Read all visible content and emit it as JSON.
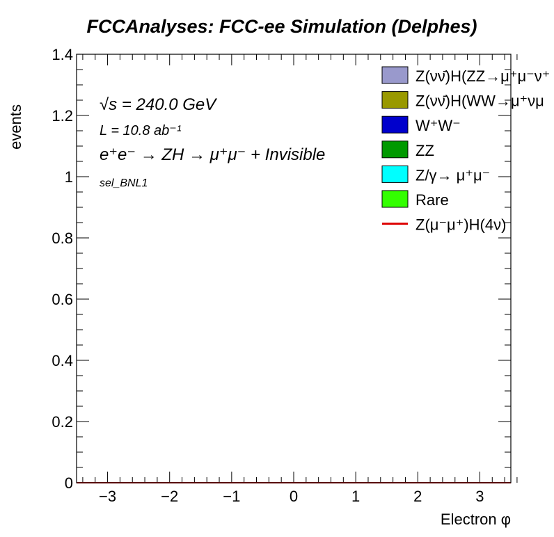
{
  "chart_data": {
    "type": "bar",
    "title": "FCCAnalyses: FCC-ee Simulation (Delphes)",
    "xlabel": "Electron φ",
    "ylabel": "events",
    "xlim": [
      -3.5,
      3.5
    ],
    "ylim": [
      0,
      1.4
    ],
    "x_ticks": [
      "−3",
      "−2",
      "−1",
      "0",
      "1",
      "2",
      "3"
    ],
    "y_ticks": [
      "0",
      "0.2",
      "0.4",
      "0.6",
      "0.8",
      "1",
      "1.2",
      "1.4"
    ],
    "grid": false,
    "legend_position": "top-right",
    "annotations": {
      "sqrt_s": "√s = 240.0 GeV",
      "lumi": "L = 10.8 ab⁻¹",
      "process": "e⁺e⁻ → ZH → μ⁺μ⁻ + Invisible",
      "selection": "sel_BNL1"
    },
    "series": [
      {
        "name": "Z(νν̄)H(ZZ→μ⁺μ⁻ν⁺",
        "style": "fill",
        "color": "#9999cc",
        "values": [
          0
        ]
      },
      {
        "name": "Z(νν̄)H(WW→μ⁺νμ",
        "style": "fill",
        "color": "#999900",
        "values": [
          0
        ]
      },
      {
        "name": "W⁺W⁻",
        "style": "fill",
        "color": "#0000cc",
        "values": [
          0
        ]
      },
      {
        "name": "ZZ",
        "style": "fill",
        "color": "#009900",
        "values": [
          0
        ]
      },
      {
        "name": "Z/γ→ μ⁺μ⁻",
        "style": "fill",
        "color": "#00ffff",
        "values": [
          0
        ]
      },
      {
        "name": "Rare",
        "style": "fill",
        "color": "#33ff00",
        "values": [
          0
        ]
      },
      {
        "name": "Z(μ⁻μ⁺)H(4ν)",
        "style": "line",
        "color": "#dd0000",
        "values": [
          0
        ]
      }
    ]
  }
}
